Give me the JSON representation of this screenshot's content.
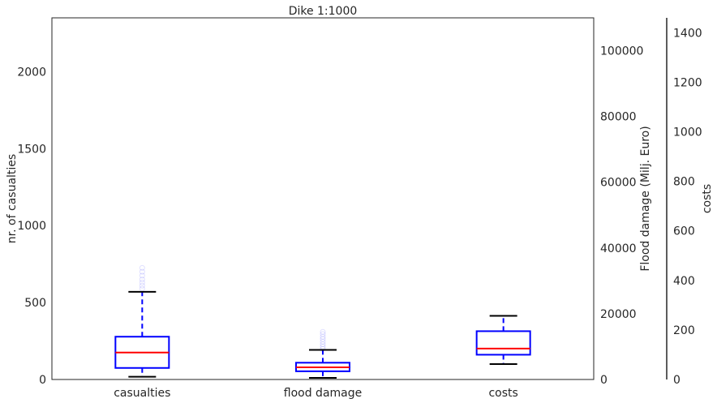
{
  "chart_data": {
    "type": "boxplot",
    "title": "Dike 1:1000",
    "categories": [
      "casualties",
      "flood damage",
      "costs"
    ],
    "axes": {
      "left": {
        "label": "nr. of casualties",
        "ylim": [
          0,
          2350
        ],
        "ticks": [
          0,
          500,
          1000,
          1500,
          2000
        ],
        "tick_labels": [
          "0",
          "500",
          "1000",
          "1500",
          "2000"
        ]
      },
      "right1": {
        "label": "Flood damage (Milj. Euro)",
        "ylim": [
          0,
          110000
        ],
        "ticks": [
          0,
          20000,
          40000,
          60000,
          80000,
          100000
        ],
        "tick_labels": [
          "0",
          "20000",
          "40000",
          "60000",
          "80000",
          "100000"
        ]
      },
      "right2": {
        "label": "costs",
        "ylim": [
          0,
          1460
        ],
        "ticks": [
          0,
          200,
          400,
          600,
          800,
          1000,
          1200,
          1400
        ],
        "tick_labels": [
          "0",
          "200",
          "400",
          "600",
          "800",
          "1000",
          "1200",
          "1400"
        ]
      }
    },
    "series": [
      {
        "category": "casualties",
        "axis": "left",
        "whisker_low": 18,
        "q1": 75,
        "median": 175,
        "q3": 278,
        "whisker_high": 570,
        "outliers": [
          590,
          610,
          630,
          650,
          675,
          700,
          725
        ]
      },
      {
        "category": "flood damage",
        "axis": "right1",
        "whisker_low": 500,
        "q1": 2500,
        "median": 3700,
        "q3": 5100,
        "whisker_high": 9000,
        "outliers": [
          9300,
          10000,
          10700,
          11500,
          12300,
          13000,
          13800,
          14500
        ]
      },
      {
        "category": "costs",
        "axis": "right2",
        "whisker_low": 62,
        "q1": 100,
        "median": 125,
        "q3": 195,
        "whisker_high": 257,
        "outliers": []
      }
    ],
    "colors": {
      "box": "#0000ff",
      "median": "#ff0000",
      "cap": "#000000",
      "whisker": "#0000ff",
      "outlier": "#0000ff"
    },
    "grid": false
  }
}
